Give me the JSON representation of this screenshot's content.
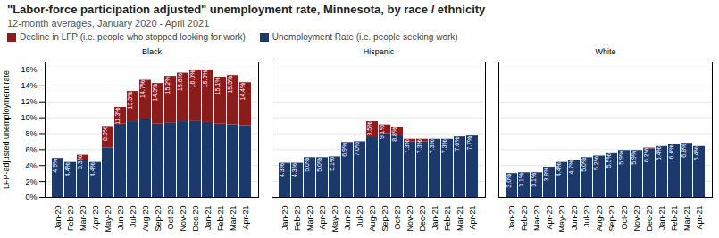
{
  "chart_data": {
    "type": "bar",
    "title": "\"Labor-force participation adjusted\" unemployment rate, Minnesota, by race / ethnicity",
    "subtitle": "12-month averages, January 2020 - April 2021",
    "ylabel": "LFP-adjusted unemployment rate",
    "stacked": true,
    "grid": true,
    "legend": "top",
    "ylim": [
      0,
      17
    ],
    "yticks": [
      {
        "value": 0,
        "label": "0%"
      },
      {
        "value": 2,
        "label": "2%"
      },
      {
        "value": 4,
        "label": "4%"
      },
      {
        "value": 6,
        "label": "6%"
      },
      {
        "value": 8,
        "label": "8%"
      },
      {
        "value": 10,
        "label": "10%"
      },
      {
        "value": 12,
        "label": "12%"
      },
      {
        "value": 14,
        "label": "14%"
      },
      {
        "value": 16,
        "label": "16%"
      }
    ],
    "panels": [
      {
        "title": "Black",
        "categories": [
          "Jan-20",
          "Feb-20",
          "Mar-20",
          "Apr-20",
          "May-20",
          "Jun-20",
          "Jul-20",
          "Aug-20",
          "Sep-20",
          "Oct-20",
          "Nov-20",
          "Dec-20",
          "Jan-21",
          "Feb-21",
          "Mar-21",
          "Apr-21"
        ],
        "series": [
          {
            "name": "Unemployment Rate (i.e. people seeking work)",
            "color": "#1b3a6b",
            "values": [
              4.9,
              4.4,
              4.6,
              4.4,
              6.2,
              9.2,
              9.5,
              9.8,
              9.2,
              9.3,
              9.5,
              9.6,
              9.4,
              9.2,
              9.1,
              9.0
            ]
          },
          {
            "name": "Decline in LFP (i.e. people who stopped looking for work)",
            "color": "#8b1c1c",
            "values": [
              0.0,
              0.0,
              0.7,
              0.0,
              2.7,
              2.1,
              3.8,
              4.9,
              5.1,
              5.9,
              6.1,
              6.4,
              6.6,
              5.9,
              6.2,
              5.4
            ]
          }
        ],
        "totals": [
          4.9,
          4.4,
          5.3,
          4.4,
          8.9,
          11.3,
          13.3,
          14.7,
          14.3,
          15.2,
          15.6,
          16.0,
          16.0,
          15.1,
          15.3,
          14.4
        ],
        "total_labels": [
          "4.9%",
          "4.4%",
          "5.3%",
          "4.4%",
          "8.9%",
          "11.3%",
          "13.3%",
          "14.7%",
          "14.3%",
          "15.2%",
          "15.6%",
          "16.0%",
          "16.0%",
          "15.1%",
          "15.3%",
          "14.4%"
        ]
      },
      {
        "title": "Hispanic",
        "categories": [
          "Jan-20",
          "Feb-20",
          "Mar-20",
          "Apr-20",
          "May-20",
          "Jun-20",
          "Jul-20",
          "Aug-20",
          "Sep-20",
          "Oct-20",
          "Nov-20",
          "Dec-20",
          "Jan-21",
          "Feb-21",
          "Mar-21",
          "Apr-21"
        ],
        "series": [
          {
            "name": "Unemployment Rate (i.e. people seeking work)",
            "color": "#1b3a6b",
            "values": [
              4.3,
              4.3,
              5.0,
              5.0,
              5.1,
              6.9,
              7.0,
              7.6,
              8.0,
              7.8,
              7.0,
              7.0,
              7.3,
              7.3,
              7.5,
              7.7
            ]
          },
          {
            "name": "Decline in LFP (i.e. people who stopped looking for work)",
            "color": "#8b1c1c",
            "values": [
              0.0,
              0.0,
              0.0,
              0.0,
              0.0,
              0.0,
              0.0,
              1.9,
              1.1,
              1.0,
              0.3,
              0.3,
              0.0,
              0.0,
              0.1,
              0.0
            ]
          }
        ],
        "totals": [
          4.3,
          4.3,
          5.0,
          5.0,
          5.1,
          6.9,
          7.0,
          9.5,
          9.1,
          8.8,
          7.3,
          7.3,
          7.3,
          7.3,
          7.6,
          7.7
        ],
        "total_labels": [
          "4.3%",
          "4.3%",
          "5.0%",
          "5.0%",
          "5.1%",
          "6.9%",
          "7.0%",
          "9.5%",
          "9.1%",
          "8.8%",
          "7.3%",
          "7.3%",
          "7.3%",
          "7.3%",
          "7.6%",
          "7.7%"
        ]
      },
      {
        "title": "White",
        "categories": [
          "Jan-20",
          "Feb-20",
          "Mar-20",
          "Apr-20",
          "May-20",
          "Jun-20",
          "Jul-20",
          "Aug-20",
          "Sep-20",
          "Oct-20",
          "Nov-20",
          "Dec-20",
          "Jan-21",
          "Feb-21",
          "Mar-21",
          "Apr-21"
        ],
        "series": [
          {
            "name": "Unemployment Rate (i.e. people seeking work)",
            "color": "#1b3a6b",
            "values": [
              3.0,
              3.1,
              3.1,
              3.8,
              4.4,
              4.7,
              5.0,
              5.2,
              5.5,
              5.9,
              5.9,
              6.1,
              6.4,
              6.6,
              6.8,
              6.4
            ]
          },
          {
            "name": "Decline in LFP (i.e. people who stopped looking for work)",
            "color": "#8b1c1c",
            "values": [
              0.0,
              0.0,
              0.0,
              0.0,
              0.0,
              0.0,
              0.0,
              0.0,
              0.0,
              0.0,
              0.0,
              0.1,
              0.0,
              0.0,
              0.0,
              0.0
            ]
          }
        ],
        "totals": [
          3.0,
          3.1,
          3.1,
          3.8,
          4.4,
          4.7,
          5.0,
          5.2,
          5.5,
          5.9,
          5.9,
          6.2,
          6.4,
          6.6,
          6.8,
          6.4
        ],
        "total_labels": [
          "3.0%",
          "3.1%",
          "3.1%",
          "3.8%",
          "4.4%",
          "4.7%",
          "5.0%",
          "5.2%",
          "5.5%",
          "5.9%",
          "5.9%",
          "6.2%",
          "6.4%",
          "6.6%",
          "6.8%",
          "6.4%"
        ]
      }
    ]
  }
}
